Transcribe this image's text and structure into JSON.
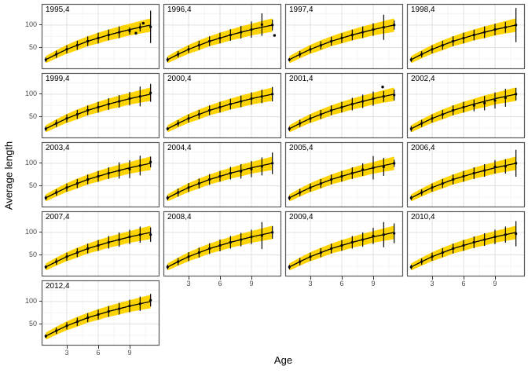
{
  "chart_data": {
    "type": "line",
    "title": "",
    "xlabel": "Age",
    "ylabel": "Average length",
    "legend": "none",
    "grid": true,
    "x": [
      1,
      2,
      3,
      4,
      5,
      6,
      7,
      8,
      9,
      10,
      11
    ],
    "x_ticks": [
      3,
      6,
      9
    ],
    "y_ticks": [
      100,
      50
    ],
    "x_minor": [
      1.5,
      4.5,
      7.5,
      10.5
    ],
    "y_minor": [
      125,
      75,
      25
    ],
    "x_domain": [
      0.6,
      11.85
    ],
    "y_domain": [
      2,
      147
    ],
    "mean_curve": [
      23,
      35,
      46,
      55,
      64,
      71,
      78,
      84,
      90,
      95,
      100
    ],
    "ribbon_halfwidth": [
      8,
      9,
      10,
      11,
      11,
      12,
      12,
      13,
      13,
      14,
      15
    ],
    "ribbon_color": "#FFD404",
    "line_color": "#000000",
    "point_color": "#000000",
    "grid_major_color": "#e4e4e4",
    "grid_minor_color": "#efefef",
    "panel_border_color": "#595959",
    "tick_label_color": "#4d4d4d",
    "facets": [
      {
        "label": "1995,4",
        "err": [
          5,
          8,
          9,
          10,
          11,
          12,
          12,
          13,
          8,
          9,
          36
        ],
        "dev": [
          0,
          0,
          0,
          0,
          0,
          0,
          0,
          0,
          -3,
          0,
          -4
        ],
        "extra": [
          [
            9.6,
            82
          ],
          [
            10.3,
            104
          ]
        ]
      },
      {
        "label": "1996,4",
        "err": [
          5,
          7,
          8,
          10,
          11,
          12,
          13,
          14,
          18,
          25,
          12
        ],
        "dev": [
          0,
          0,
          0,
          0,
          0,
          0,
          0,
          0,
          0,
          6,
          0
        ],
        "extra": [
          [
            11.2,
            77
          ]
        ]
      },
      {
        "label": "1997,4",
        "err": [
          4,
          7,
          8,
          9,
          10,
          11,
          12,
          13,
          14,
          28,
          10
        ],
        "dev": [
          0,
          0,
          0,
          0,
          0,
          0,
          0,
          0,
          0,
          0,
          0
        ],
        "extra": []
      },
      {
        "label": "1998,4",
        "err": [
          5,
          7,
          9,
          10,
          11,
          12,
          12,
          13,
          13,
          12,
          38
        ],
        "dev": [
          0,
          0,
          0,
          0,
          0,
          0,
          0,
          0,
          0,
          0,
          0
        ],
        "extra": []
      },
      {
        "label": "1999,4",
        "err": [
          5,
          8,
          9,
          10,
          11,
          12,
          13,
          14,
          15,
          22,
          20
        ],
        "dev": [
          0,
          0,
          0,
          0,
          0,
          0,
          0,
          0,
          0,
          0,
          3
        ],
        "extra": []
      },
      {
        "label": "2000,4",
        "err": [
          4,
          7,
          9,
          10,
          11,
          12,
          12,
          13,
          14,
          15,
          16
        ],
        "dev": [
          0,
          0,
          0,
          0,
          0,
          0,
          0,
          0,
          0,
          0,
          0
        ],
        "extra": []
      },
      {
        "label": "2001,4",
        "err": [
          5,
          8,
          9,
          10,
          11,
          12,
          14,
          15,
          16,
          12,
          12
        ],
        "dev": [
          0,
          0,
          0,
          0,
          0,
          0,
          0,
          0,
          0,
          0,
          -2
        ],
        "extra": [
          [
            9.9,
            116
          ]
        ]
      },
      {
        "label": "2002,4",
        "err": [
          6,
          8,
          9,
          10,
          11,
          12,
          13,
          16,
          18,
          20,
          14
        ],
        "dev": [
          0,
          0,
          0,
          0,
          0,
          0,
          -3,
          -4,
          -4,
          -3,
          0
        ],
        "extra": []
      },
      {
        "label": "2003,4",
        "err": [
          5,
          7,
          9,
          10,
          11,
          12,
          13,
          18,
          20,
          22,
          12
        ],
        "dev": [
          0,
          0,
          0,
          0,
          0,
          0,
          0,
          0,
          -3,
          0,
          3
        ],
        "extra": []
      },
      {
        "label": "2004,4",
        "err": [
          5,
          9,
          10,
          11,
          12,
          12,
          14,
          16,
          18,
          20,
          24
        ],
        "dev": [
          0,
          0,
          0,
          0,
          0,
          0,
          0,
          -2,
          -3,
          -2,
          0
        ],
        "extra": []
      },
      {
        "label": "2005,4",
        "err": [
          5,
          8,
          9,
          10,
          11,
          12,
          13,
          14,
          26,
          20,
          8
        ],
        "dev": [
          0,
          0,
          0,
          0,
          0,
          0,
          0,
          2,
          0,
          -3,
          0
        ],
        "extra": []
      },
      {
        "label": "2006,4",
        "err": [
          5,
          7,
          9,
          10,
          11,
          12,
          13,
          14,
          15,
          16,
          30
        ],
        "dev": [
          0,
          0,
          0,
          0,
          0,
          0,
          0,
          0,
          2,
          -2,
          0
        ],
        "extra": []
      },
      {
        "label": "2007,4",
        "err": [
          4,
          7,
          9,
          10,
          11,
          12,
          14,
          16,
          16,
          18,
          16
        ],
        "dev": [
          0,
          0,
          0,
          0,
          0,
          0,
          0,
          0,
          0,
          0,
          -5
        ],
        "extra": []
      },
      {
        "label": "2008,4",
        "err": [
          5,
          8,
          10,
          11,
          12,
          13,
          14,
          15,
          16,
          30,
          14
        ],
        "dev": [
          0,
          0,
          0,
          0,
          0,
          0,
          0,
          0,
          0,
          -2,
          0
        ],
        "extra": []
      },
      {
        "label": "2009,4",
        "err": [
          5,
          8,
          9,
          10,
          11,
          12,
          14,
          16,
          18,
          28,
          22
        ],
        "dev": [
          0,
          0,
          0,
          0,
          0,
          0,
          0,
          0,
          2,
          0,
          -2
        ],
        "extra": []
      },
      {
        "label": "2010,4",
        "err": [
          5,
          7,
          9,
          10,
          11,
          12,
          13,
          14,
          16,
          18,
          28
        ],
        "dev": [
          0,
          0,
          0,
          0,
          0,
          0,
          0,
          0,
          0,
          0,
          -3
        ],
        "extra": []
      },
      {
        "label": "2012,4",
        "err": [
          4,
          7,
          8,
          9,
          10,
          11,
          12,
          13,
          14,
          16,
          14
        ],
        "dev": [
          0,
          0,
          0,
          0,
          0,
          0,
          0,
          0,
          0,
          0,
          3
        ],
        "extra": []
      }
    ]
  }
}
